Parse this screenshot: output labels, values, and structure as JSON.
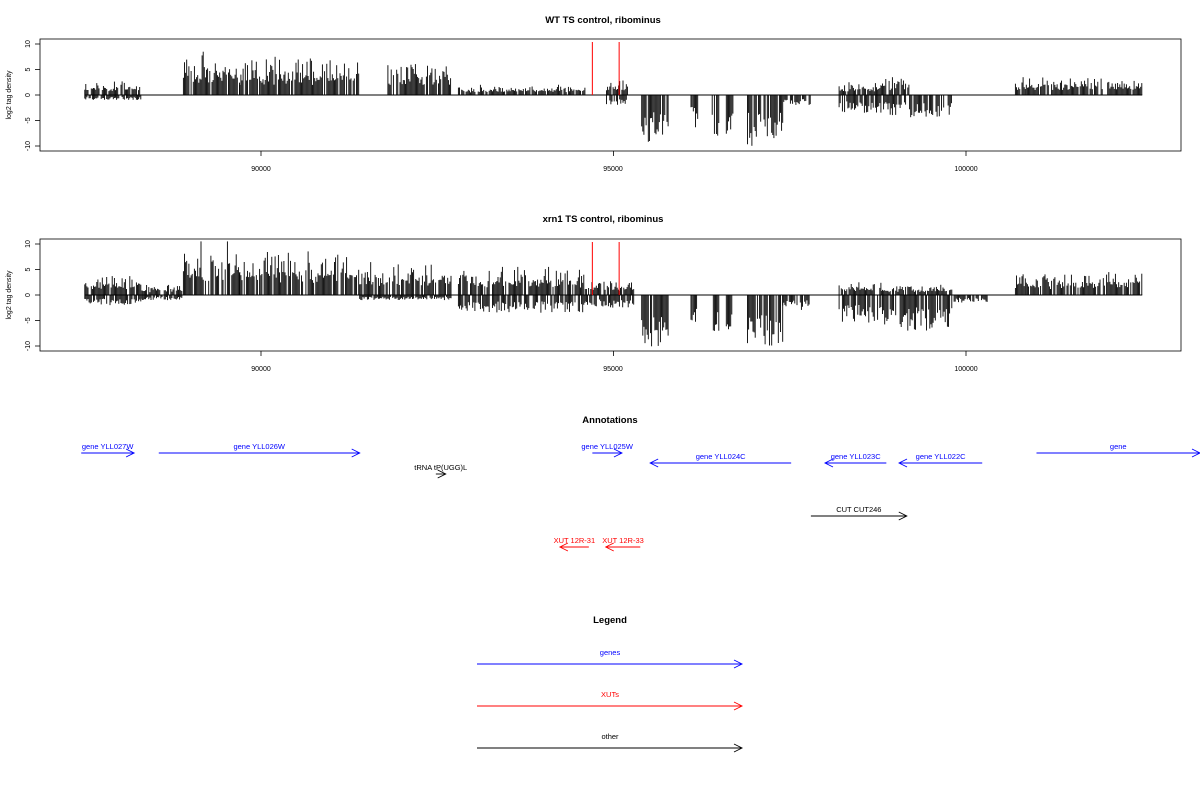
{
  "colors": {
    "genes": "#0000ff",
    "xuts": "#ff0000",
    "other": "#000000",
    "marker": "#ff0000"
  },
  "chart_data": [
    {
      "type": "bar",
      "title": "WT TS control, ribominus",
      "xlabel": "",
      "ylabel": "log2 tag density",
      "ylim": [
        -11,
        11
      ],
      "xlim": [
        87500,
        102500
      ],
      "x_ticks": [
        "90000",
        "95000",
        "100000"
      ],
      "y_ticks": [
        "10",
        "5",
        "0",
        "-5",
        "-10"
      ],
      "markers_x": [
        94700,
        95080
      ],
      "segments": [
        {
          "x0": 87500,
          "x1": 88300,
          "min": -1,
          "max": 3
        },
        {
          "x0": 88900,
          "x1": 89700,
          "min": 0,
          "max": 8.5
        },
        {
          "x0": 89700,
          "x1": 91400,
          "min": 0,
          "max": 7.5
        },
        {
          "x0": 91800,
          "x1": 92700,
          "min": 0,
          "max": 7
        },
        {
          "x0": 92800,
          "x1": 94600,
          "min": 0,
          "max": 2
        },
        {
          "x0": 94900,
          "x1": 95200,
          "min": -2,
          "max": 3
        },
        {
          "x0": 95400,
          "x1": 95800,
          "min": -9.5,
          "max": 0
        },
        {
          "x0": 96100,
          "x1": 96200,
          "min": -6.5,
          "max": 0
        },
        {
          "x0": 96400,
          "x1": 96500,
          "min": -9,
          "max": 0
        },
        {
          "x0": 96600,
          "x1": 96700,
          "min": -8,
          "max": 0
        },
        {
          "x0": 96900,
          "x1": 97400,
          "min": -10,
          "max": 0
        },
        {
          "x0": 97400,
          "x1": 97800,
          "min": -2,
          "max": 0
        },
        {
          "x0": 98200,
          "x1": 98800,
          "min": -3.5,
          "max": 2.5
        },
        {
          "x0": 98800,
          "x1": 99200,
          "min": -4,
          "max": 3.5
        },
        {
          "x0": 99200,
          "x1": 99800,
          "min": -4.5,
          "max": 0
        },
        {
          "x0": 100700,
          "x1": 102500,
          "min": 0,
          "max": 3.5
        }
      ]
    },
    {
      "type": "bar",
      "title": "xrn1 TS control, ribominus",
      "xlabel": "",
      "ylabel": "log2 tag density",
      "ylim": [
        -11,
        11
      ],
      "xlim": [
        87500,
        102500
      ],
      "x_ticks": [
        "90000",
        "95000",
        "100000"
      ],
      "y_ticks": [
        "10",
        "5",
        "0",
        "-5",
        "-10"
      ],
      "markers_x": [
        94700,
        95080
      ],
      "segments": [
        {
          "x0": 87500,
          "x1": 88300,
          "min": -2,
          "max": 4
        },
        {
          "x0": 88300,
          "x1": 88900,
          "min": -1,
          "max": 2
        },
        {
          "x0": 88900,
          "x1": 89700,
          "min": 0,
          "max": 10.5
        },
        {
          "x0": 89700,
          "x1": 91400,
          "min": 0,
          "max": 9
        },
        {
          "x0": 91400,
          "x1": 92700,
          "min": -1,
          "max": 6.5
        },
        {
          "x0": 92800,
          "x1": 94600,
          "min": -3.5,
          "max": 5.5
        },
        {
          "x0": 94600,
          "x1": 95300,
          "min": -2.5,
          "max": 3
        },
        {
          "x0": 95400,
          "x1": 95800,
          "min": -10.5,
          "max": 0
        },
        {
          "x0": 96100,
          "x1": 96200,
          "min": -6.5,
          "max": 0
        },
        {
          "x0": 96400,
          "x1": 96500,
          "min": -9,
          "max": 0
        },
        {
          "x0": 96600,
          "x1": 96700,
          "min": -7.5,
          "max": 0
        },
        {
          "x0": 96900,
          "x1": 97400,
          "min": -10,
          "max": 0
        },
        {
          "x0": 97400,
          "x1": 97800,
          "min": -3,
          "max": 0
        },
        {
          "x0": 98200,
          "x1": 98800,
          "min": -5.5,
          "max": 2.5
        },
        {
          "x0": 98800,
          "x1": 99800,
          "min": -7,
          "max": 2
        },
        {
          "x0": 99800,
          "x1": 100300,
          "min": -1.5,
          "max": 0
        },
        {
          "x0": 100700,
          "x1": 102500,
          "min": 0,
          "max": 4.5
        }
      ]
    }
  ],
  "annotations": {
    "title": "Annotations",
    "features": [
      {
        "label": "gene YLL027W",
        "kind": "genes",
        "x0": 87450,
        "x1": 88200,
        "dir": 1,
        "row": 0
      },
      {
        "label": "gene YLL026W",
        "kind": "genes",
        "x0": 88550,
        "x1": 91400,
        "dir": 1,
        "row": 0
      },
      {
        "label": "gene YLL025W",
        "kind": "genes",
        "x0": 94700,
        "x1": 95120,
        "dir": 1,
        "row": 0
      },
      {
        "label": "gene YLL024C",
        "kind": "genes",
        "x0": 95520,
        "x1": 97520,
        "dir": -1,
        "row": 1
      },
      {
        "label": "gene YLL023C",
        "kind": "genes",
        "x0": 98000,
        "x1": 98870,
        "dir": -1,
        "row": 1
      },
      {
        "label": "gene YLL022C",
        "kind": "genes",
        "x0": 99050,
        "x1": 100230,
        "dir": -1,
        "row": 1
      },
      {
        "label": "gene",
        "kind": "genes",
        "x0": 101000,
        "x1": 103500,
        "dir": 1,
        "row": 0
      },
      {
        "label": "tRNA tP(UGG)L",
        "kind": "other",
        "x0": 92480,
        "x1": 92620,
        "dir": 1,
        "row": 2
      },
      {
        "label": "CUT CUT246",
        "kind": "other",
        "x0": 97800,
        "x1": 99160,
        "dir": 1,
        "row": 3
      },
      {
        "label": "XUT 12R-31",
        "kind": "xuts",
        "x0": 94240,
        "x1": 94650,
        "dir": -1,
        "row": 4
      },
      {
        "label": "XUT 12R-33",
        "kind": "xuts",
        "x0": 94890,
        "x1": 95380,
        "dir": -1,
        "row": 4
      }
    ]
  },
  "legend": {
    "title": "Legend",
    "items": [
      {
        "label": "genes",
        "kind": "genes"
      },
      {
        "label": "XUTs",
        "kind": "xuts"
      },
      {
        "label": "other",
        "kind": "other"
      }
    ]
  }
}
